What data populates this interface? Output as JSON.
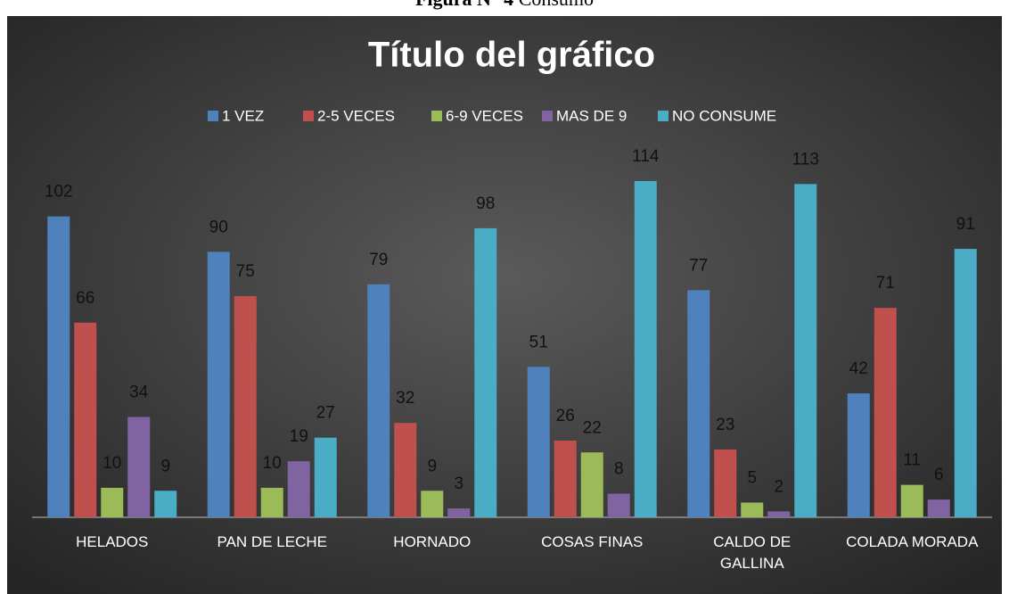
{
  "caption": {
    "label": "Figura N° 4",
    "text": "Consumo"
  },
  "chart_data": {
    "type": "bar",
    "title": "Título del gráfico",
    "categories": [
      "HELADOS",
      "PAN DE LECHE",
      "HORNADO",
      "COSAS FINAS",
      "CALDO DE\nGALLINA",
      "COLADA MORADA"
    ],
    "series": [
      {
        "name": "1 VEZ",
        "color": "#4f81bd",
        "values": [
          102,
          90,
          79,
          51,
          77,
          42
        ]
      },
      {
        "name": "2-5 VECES",
        "color": "#c0504d",
        "values": [
          66,
          75,
          32,
          26,
          23,
          71
        ]
      },
      {
        "name": "6-9 VECES",
        "color": "#9bbb59",
        "values": [
          10,
          10,
          9,
          22,
          5,
          11
        ]
      },
      {
        "name": "MAS DE 9",
        "color": "#8064a2",
        "values": [
          34,
          19,
          3,
          8,
          2,
          6
        ]
      },
      {
        "name": "NO CONSUME",
        "color": "#4bacc6",
        "values": [
          9,
          27,
          98,
          114,
          113,
          91
        ]
      }
    ],
    "legend": "top"
  }
}
